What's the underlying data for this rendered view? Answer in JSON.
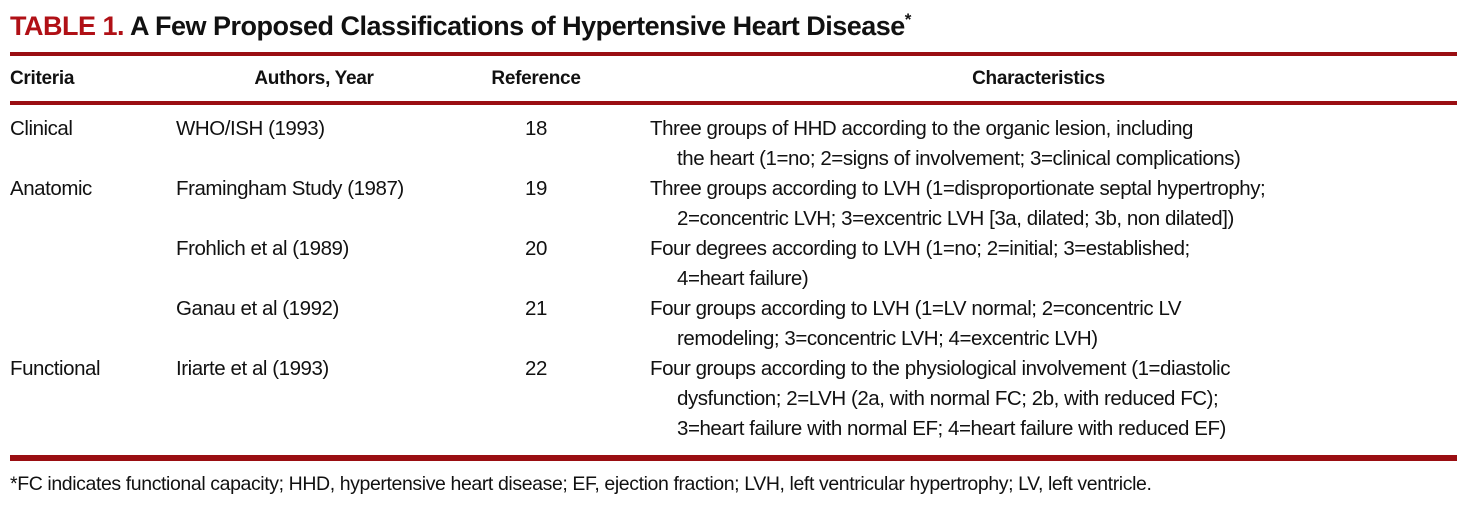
{
  "table": {
    "label": "TABLE 1.",
    "title": "A Few Proposed Classifications of Hypertensive Heart Disease",
    "title_footnote_marker": "*",
    "columns": {
      "criteria": "Criteria",
      "authors": "Authors, Year",
      "reference": "Reference",
      "characteristics": "Characteristics"
    },
    "rows": [
      {
        "criteria": "Clinical",
        "authors": "WHO/ISH (1993)",
        "reference": "18",
        "characteristics": [
          "Three groups of HHD according to the organic lesion, including",
          "the heart (1=no; 2=signs of involvement; 3=clinical complications)"
        ]
      },
      {
        "criteria": "Anatomic",
        "authors": "Framingham Study (1987)",
        "reference": "19",
        "characteristics": [
          "Three groups according to LVH (1=disproportionate septal hypertrophy;",
          "2=concentric LVH; 3=excentric LVH [3a, dilated; 3b, non dilated])"
        ]
      },
      {
        "criteria": "",
        "authors": "Frohlich et al (1989)",
        "reference": "20",
        "characteristics": [
          "Four degrees according to LVH (1=no; 2=initial; 3=established;",
          "4=heart failure)"
        ]
      },
      {
        "criteria": "",
        "authors": "Ganau et al (1992)",
        "reference": "21",
        "characteristics": [
          "Four groups according to LVH (1=LV normal; 2=concentric LV",
          "remodeling; 3=concentric LVH; 4=excentric LVH)"
        ]
      },
      {
        "criteria": "Functional",
        "authors": "Iriarte et al (1993)",
        "reference": "22",
        "characteristics": [
          "Four groups according to the physiological involvement (1=diastolic",
          "dysfunction; 2=LVH (2a, with normal FC; 2b, with reduced FC);",
          "3=heart failure with normal EF; 4=heart failure with reduced EF)"
        ]
      }
    ],
    "footnote": "*FC indicates functional capacity; HHD, hypertensive heart disease; EF, ejection fraction; LVH, left ventricular hypertrophy; LV, left ventricle."
  },
  "colors": {
    "accent_red": "#b01016",
    "rule_red": "#9a0e12",
    "text": "#111111",
    "background": "#ffffff"
  }
}
